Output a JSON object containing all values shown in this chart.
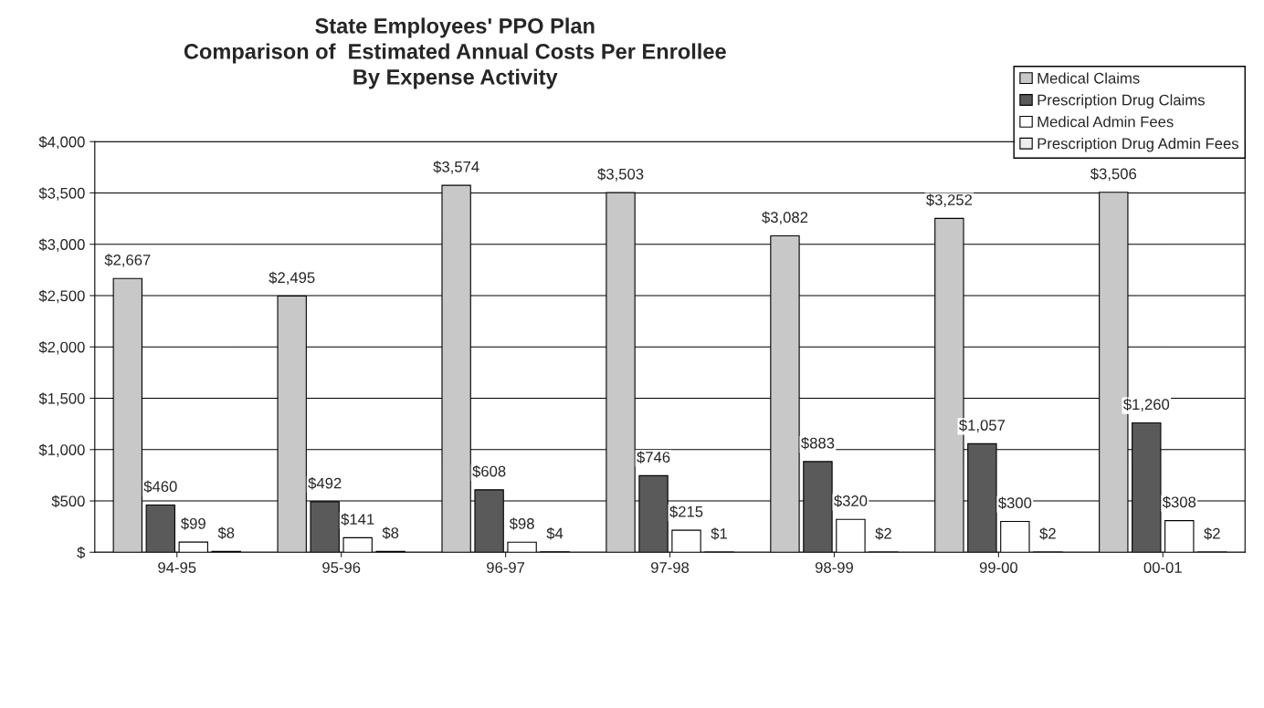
{
  "chart_data": {
    "type": "bar",
    "title": "State Employees' PPO Plan\nComparison of  Estimated Annual Costs Per Enrollee\nBy Expense Activity",
    "categories": [
      "94-95",
      "95-96",
      "96-97",
      "97-98",
      "98-99",
      "99-00",
      "00-01"
    ],
    "series": [
      {
        "name": "Medical Claims",
        "color": "#c8c8c8",
        "values": [
          2667,
          2495,
          3574,
          3503,
          3082,
          3252,
          3506
        ],
        "value_labels": [
          "$2,667",
          "$2,495",
          "$3,574",
          "$3,503",
          "$3,082",
          "$3,252",
          "$3,506"
        ]
      },
      {
        "name": "Prescription Drug Claims",
        "color": "#5a5a5a",
        "values": [
          460,
          492,
          608,
          746,
          883,
          1057,
          1260
        ],
        "value_labels": [
          "$460",
          "$492",
          "$608",
          "$746",
          "$883",
          "$1,057",
          "$1,260"
        ]
      },
      {
        "name": "Medical Admin Fees",
        "color": "#ffffff",
        "values": [
          99,
          141,
          98,
          215,
          320,
          300,
          308
        ],
        "value_labels": [
          "$99",
          "$141",
          "$98",
          "$215",
          "$320",
          "$300",
          "$308"
        ]
      },
      {
        "name": "Prescription Drug Admin Fees",
        "color": "#eeeeee",
        "values": [
          8,
          8,
          4,
          1,
          2,
          2,
          2
        ],
        "value_labels": [
          "$8",
          "$8",
          "$4",
          "$1",
          "$2",
          "$2",
          "$2"
        ]
      }
    ],
    "ylim": [
      0,
      4000
    ],
    "yticks": [
      {
        "value": 0,
        "label": "$"
      },
      {
        "value": 500,
        "label": "$500"
      },
      {
        "value": 1000,
        "label": "$1,000"
      },
      {
        "value": 1500,
        "label": "$1,500"
      },
      {
        "value": 2000,
        "label": "$2,000"
      },
      {
        "value": 2500,
        "label": "$2,500"
      },
      {
        "value": 3000,
        "label": "$3,000"
      },
      {
        "value": 3500,
        "label": "$3,500"
      },
      {
        "value": 4000,
        "label": "$4,000"
      }
    ],
    "grid": "y",
    "legend": "top right"
  }
}
